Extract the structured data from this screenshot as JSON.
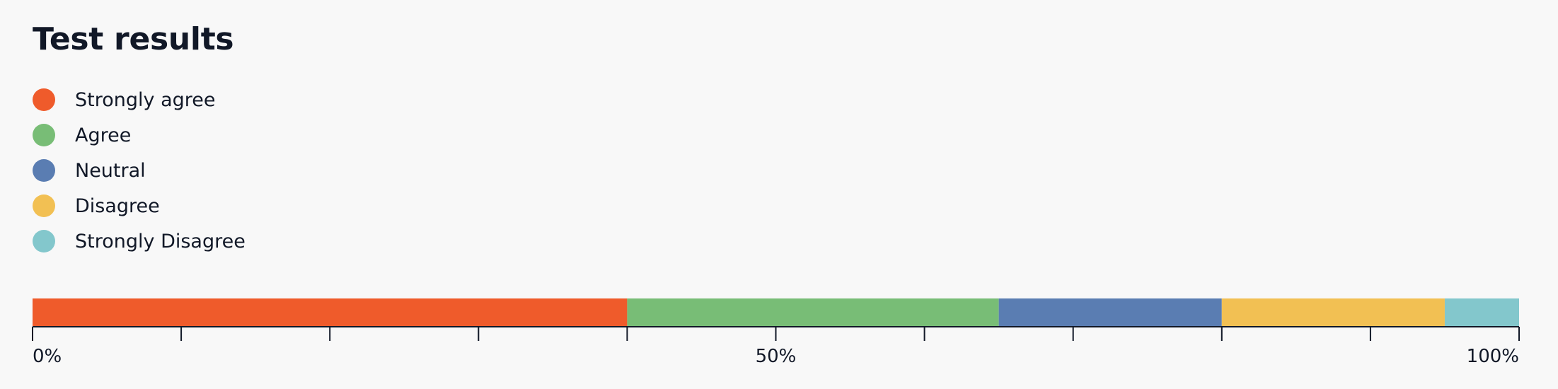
{
  "chart_data": {
    "type": "bar",
    "orientation": "horizontal-stacked",
    "title": "Test results",
    "categories": [
      "Strongly agree",
      "Agree",
      "Neutral",
      "Disagree",
      "Strongly Disagree"
    ],
    "values": [
      40,
      25,
      15,
      15,
      5
    ],
    "colors": [
      "#EF5B2B",
      "#78BD76",
      "#5A7DB2",
      "#F2C053",
      "#83C7CC"
    ],
    "xlim": [
      0,
      100
    ],
    "x_ticks": [
      0,
      10,
      20,
      30,
      40,
      50,
      60,
      70,
      80,
      90,
      100
    ],
    "x_tick_labels": [
      {
        "value": 0,
        "label": "0%"
      },
      {
        "value": 50,
        "label": "50%"
      },
      {
        "value": 100,
        "label": "100%"
      }
    ],
    "legend": "top-left",
    "grid": false
  }
}
